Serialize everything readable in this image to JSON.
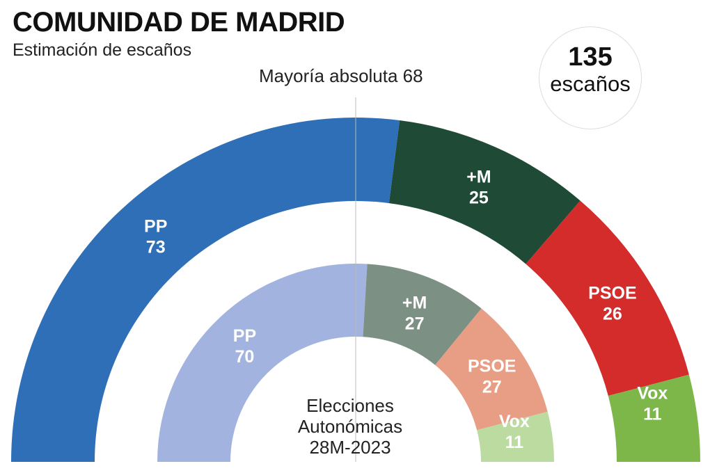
{
  "chart_data": [
    {
      "type": "pie",
      "title": "COMUNIDAD DE MADRID",
      "subtitle": "Estimación de escaños",
      "total_seats": 135,
      "total_label": "escaños",
      "majority_label": "Mayoría absoluta 68",
      "categories": [
        "PP",
        "+M",
        "PSOE",
        "Vox"
      ],
      "values": [
        73,
        25,
        26,
        11
      ],
      "colors": [
        "#2e6fb8",
        "#1e4a36",
        "#d42b2b",
        "#7db74a"
      ]
    },
    {
      "type": "pie",
      "title": "Elecciones Autonómicas 28M-2023",
      "center_lines": [
        "Elecciones",
        "Autonómicas",
        "28M-2023"
      ],
      "categories": [
        "PP",
        "+M",
        "PSOE",
        "Vox"
      ],
      "values": [
        70,
        27,
        27,
        11
      ],
      "colors": [
        "#a3b3df",
        "#7c9084",
        "#e89e85",
        "#bcdba0"
      ]
    }
  ]
}
